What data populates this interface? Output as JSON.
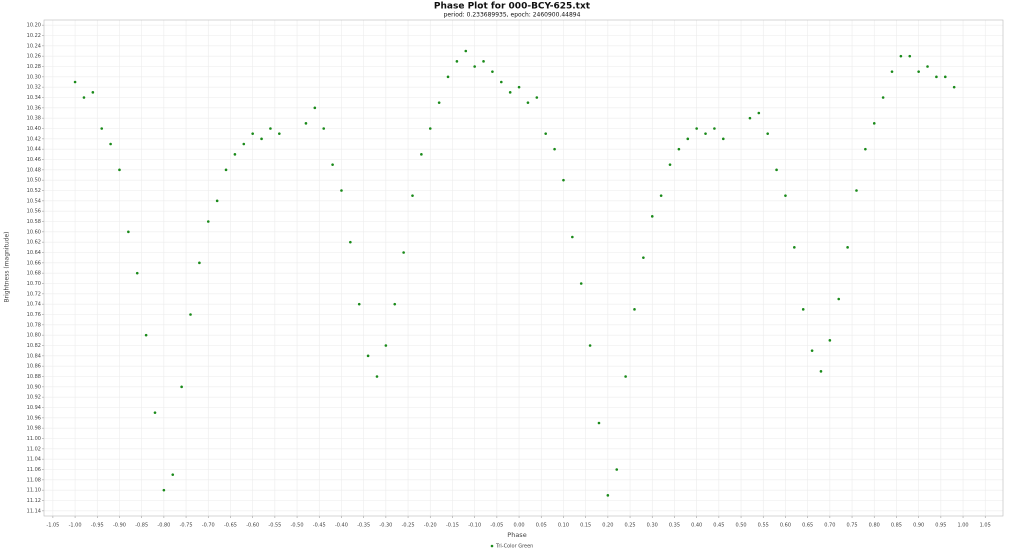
{
  "chart_data": {
    "type": "scatter",
    "title": "Phase Plot for 000-BCY-625.txt",
    "subtitle": "period: 0.233689935, epoch: 2460900.44894",
    "x_label": "Phase",
    "y_label": "Brightness (magnitude)",
    "grid": true,
    "legend": "bottom",
    "xlim": [
      -1.07,
      1.09
    ],
    "ylim": [
      11.15,
      10.19
    ],
    "xticks": [
      -1.05,
      {
        "value": -1,
        "label": "-1.00"
      },
      -0.95,
      {
        "value": -0.9,
        "label": "-0.90"
      },
      -0.85,
      {
        "value": -0.8,
        "label": "-0.80"
      },
      -0.75,
      {
        "value": -0.7,
        "label": "-0.70"
      },
      -0.65,
      {
        "value": -0.6,
        "label": "-0.60"
      },
      -0.55,
      {
        "value": -0.5,
        "label": "-0.50"
      },
      -0.45,
      {
        "value": -0.4,
        "label": "-0.40"
      },
      -0.35,
      {
        "value": -0.3,
        "label": "-0.30"
      },
      -0.25,
      {
        "value": -0.2,
        "label": "-0.20"
      },
      -0.15,
      {
        "value": -0.1,
        "label": "-0.10"
      },
      -0.05,
      {
        "value": 0,
        "label": "0.00"
      },
      0.05,
      {
        "value": 0.1,
        "label": "0.10"
      },
      0.15,
      {
        "value": 0.2,
        "label": "0.20"
      },
      0.25,
      {
        "value": 0.3,
        "label": "0.30"
      },
      0.35,
      {
        "value": 0.4,
        "label": "0.40"
      },
      0.45,
      {
        "value": 0.5,
        "label": "0.50"
      },
      0.55,
      {
        "value": 0.6,
        "label": "0.60"
      },
      0.65,
      {
        "value": 0.7,
        "label": "0.70"
      },
      0.75,
      {
        "value": 0.8,
        "label": "0.80"
      },
      0.85,
      {
        "value": 0.9,
        "label": "0.90"
      },
      0.95,
      {
        "value": 1,
        "label": "1.00"
      },
      1.05
    ],
    "yticks": [
      {
        "value": 10.2,
        "label": "10.20"
      },
      10.22,
      10.24,
      10.26,
      10.28,
      {
        "value": 10.3,
        "label": "10.30"
      },
      10.32,
      10.34,
      10.36,
      10.38,
      {
        "value": 10.4,
        "label": "10.40"
      },
      10.42,
      10.44,
      10.46,
      10.48,
      {
        "value": 10.5,
        "label": "10.50"
      },
      10.52,
      10.54,
      10.56,
      10.58,
      {
        "value": 10.6,
        "label": "10.60"
      },
      10.62,
      10.64,
      10.66,
      10.68,
      {
        "value": 10.7,
        "label": "10.70"
      },
      10.72,
      10.74,
      10.76,
      10.78,
      {
        "value": 10.8,
        "label": "10.80"
      },
      10.82,
      10.84,
      10.86,
      10.88,
      {
        "value": 10.9,
        "label": "10.90"
      },
      10.92,
      10.94,
      10.96,
      10.98,
      {
        "value": 11,
        "label": "11.00"
      },
      11.02,
      11.04,
      11.06,
      11.08,
      {
        "value": 11.1,
        "label": "11.10"
      },
      11.12,
      11.14
    ],
    "series": [
      {
        "name": "Tri-Color Green",
        "color": "#1a8a1a",
        "x": [
          -1.0,
          -0.98,
          -0.96,
          -0.94,
          -0.92,
          -0.9,
          -0.88,
          -0.86,
          -0.84,
          -0.82,
          -0.8,
          -0.78,
          -0.76,
          -0.74,
          -0.72,
          -0.7,
          -0.68,
          -0.66,
          -0.64,
          -0.62,
          -0.6,
          -0.58,
          -0.56,
          -0.54,
          -0.48,
          -0.46,
          -0.44,
          -0.42,
          -0.4,
          -0.38,
          -0.36,
          -0.34,
          -0.32,
          -0.3,
          -0.28,
          -0.26,
          -0.24,
          -0.22,
          -0.2,
          -0.18,
          -0.16,
          -0.14,
          -0.12,
          -0.1,
          -0.08,
          -0.06,
          -0.04,
          -0.02,
          0.0,
          0.02,
          0.04,
          0.06,
          0.08,
          0.1,
          0.12,
          0.14,
          0.16,
          0.18,
          0.2,
          0.22,
          0.24,
          0.26,
          0.28,
          0.3,
          0.32,
          0.34,
          0.36,
          0.38,
          0.4,
          0.42,
          0.44,
          0.46,
          0.52,
          0.54,
          0.56,
          0.58,
          0.6,
          0.62,
          0.64,
          0.66,
          0.68,
          0.7,
          0.72,
          0.74,
          0.76,
          0.78,
          0.8,
          0.82,
          0.84,
          0.86,
          0.88,
          0.9,
          0.92,
          0.94,
          0.96,
          0.98
        ],
        "values": [
          10.31,
          10.34,
          10.33,
          10.4,
          10.43,
          10.48,
          10.6,
          10.68,
          10.8,
          10.95,
          11.1,
          11.07,
          10.9,
          10.76,
          10.66,
          10.58,
          10.54,
          10.48,
          10.45,
          10.43,
          10.41,
          10.42,
          10.4,
          10.41,
          10.39,
          10.36,
          10.4,
          10.47,
          10.52,
          10.62,
          10.74,
          10.84,
          10.88,
          10.82,
          10.74,
          10.64,
          10.53,
          10.45,
          10.4,
          10.35,
          10.3,
          10.27,
          10.25,
          10.28,
          10.27,
          10.29,
          10.31,
          10.33,
          10.32,
          10.35,
          10.34,
          10.41,
          10.44,
          10.5,
          10.61,
          10.7,
          10.82,
          10.97,
          11.11,
          11.06,
          10.88,
          10.75,
          10.65,
          10.57,
          10.53,
          10.47,
          10.44,
          10.42,
          10.4,
          10.41,
          10.4,
          10.42,
          10.38,
          10.37,
          10.41,
          10.48,
          10.53,
          10.63,
          10.75,
          10.83,
          10.87,
          10.81,
          10.73,
          10.63,
          10.52,
          10.44,
          10.39,
          10.34,
          10.29,
          10.26,
          10.26,
          10.29,
          10.28,
          10.3,
          10.3,
          10.32
        ]
      }
    ]
  }
}
